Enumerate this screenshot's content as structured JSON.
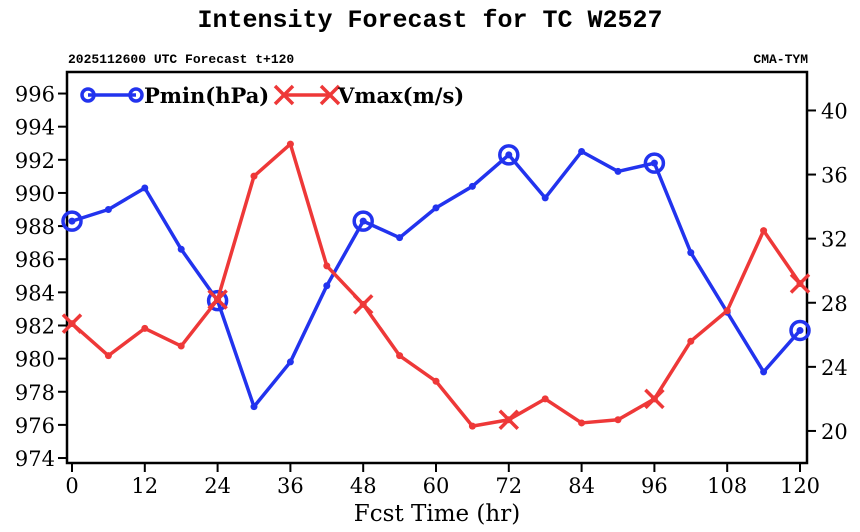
{
  "chart_data": {
    "type": "line",
    "title": "Intensity Forecast for TC W2527",
    "subtitle_left": "2025112600 UTC Forecast t+120",
    "subtitle_right": "CMA-TYM",
    "xlabel": "Fcst Time (hr)",
    "x": [
      0,
      6,
      12,
      18,
      24,
      30,
      36,
      42,
      48,
      54,
      60,
      66,
      72,
      78,
      84,
      90,
      96,
      102,
      108,
      114,
      120
    ],
    "xlim": [
      0,
      120
    ],
    "xticks": [
      0,
      12,
      24,
      36,
      48,
      60,
      72,
      84,
      96,
      108,
      120
    ],
    "ylim_left": [
      973.7,
      997.3
    ],
    "yticks_left": [
      974,
      976,
      978,
      980,
      982,
      984,
      986,
      988,
      990,
      992,
      994,
      996
    ],
    "ylim_right": [
      18,
      42.4
    ],
    "yticks_right": [
      20,
      24,
      28,
      32,
      36,
      40
    ],
    "legend_placement": "top-left",
    "series": [
      {
        "name": "Pmin(hPa)",
        "axis": "left",
        "color": "#2233ee",
        "marker": "circle",
        "values": [
          988.3,
          989.0,
          990.3,
          986.6,
          983.5,
          977.1,
          979.8,
          984.4,
          988.3,
          987.3,
          989.1,
          990.4,
          992.3,
          989.7,
          992.5,
          991.3,
          991.8,
          986.4,
          982.8,
          979.2,
          981.7
        ]
      },
      {
        "name": "Vmax(m/s)",
        "axis": "right",
        "color": "#ee3838",
        "marker": "cross",
        "values": [
          26.7,
          24.7,
          26.4,
          25.3,
          28.2,
          35.9,
          37.9,
          30.3,
          27.9,
          24.7,
          23.1,
          20.3,
          20.7,
          22.0,
          20.5,
          20.7,
          22.0,
          25.6,
          27.5,
          32.5,
          29.2
        ]
      }
    ],
    "marker_every_hr": 24
  }
}
